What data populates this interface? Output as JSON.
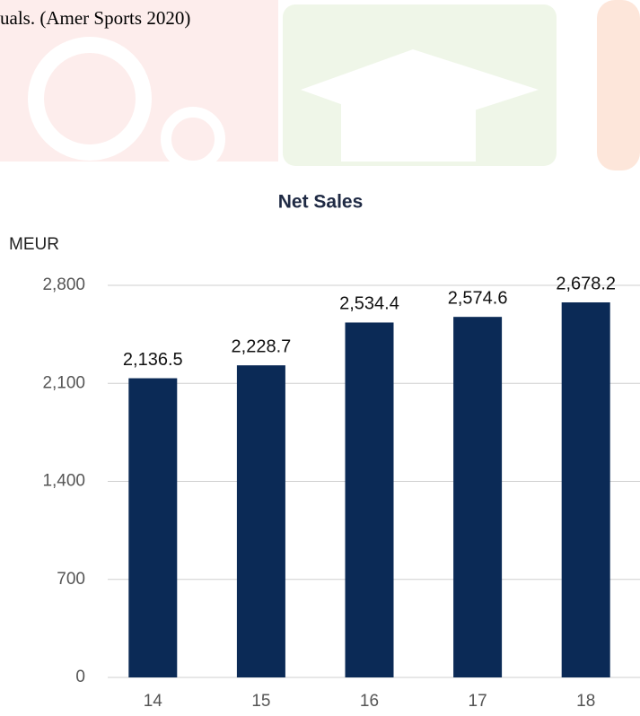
{
  "caption": "uals. (Amer Sports 2020)",
  "chart_data": {
    "type": "bar",
    "title": "Net Sales",
    "ylabel": "MEUR",
    "categories": [
      "14",
      "15",
      "16",
      "17",
      "18"
    ],
    "values": [
      2136.5,
      2228.7,
      2534.4,
      2574.6,
      2678.2
    ],
    "value_labels": [
      "2,136.5",
      "2,228.7",
      "2,534.4",
      "2,574.6",
      "2,678.2"
    ],
    "color": "#0b2a56",
    "ylim": [
      0,
      2800
    ],
    "yticks": [
      0,
      700,
      {
        "value": 1400,
        "label": "1,400"
      },
      {
        "value": 2100,
        "label": "2,100"
      },
      {
        "value": 2800,
        "label": "2,800"
      }
    ],
    "grid": true
  }
}
